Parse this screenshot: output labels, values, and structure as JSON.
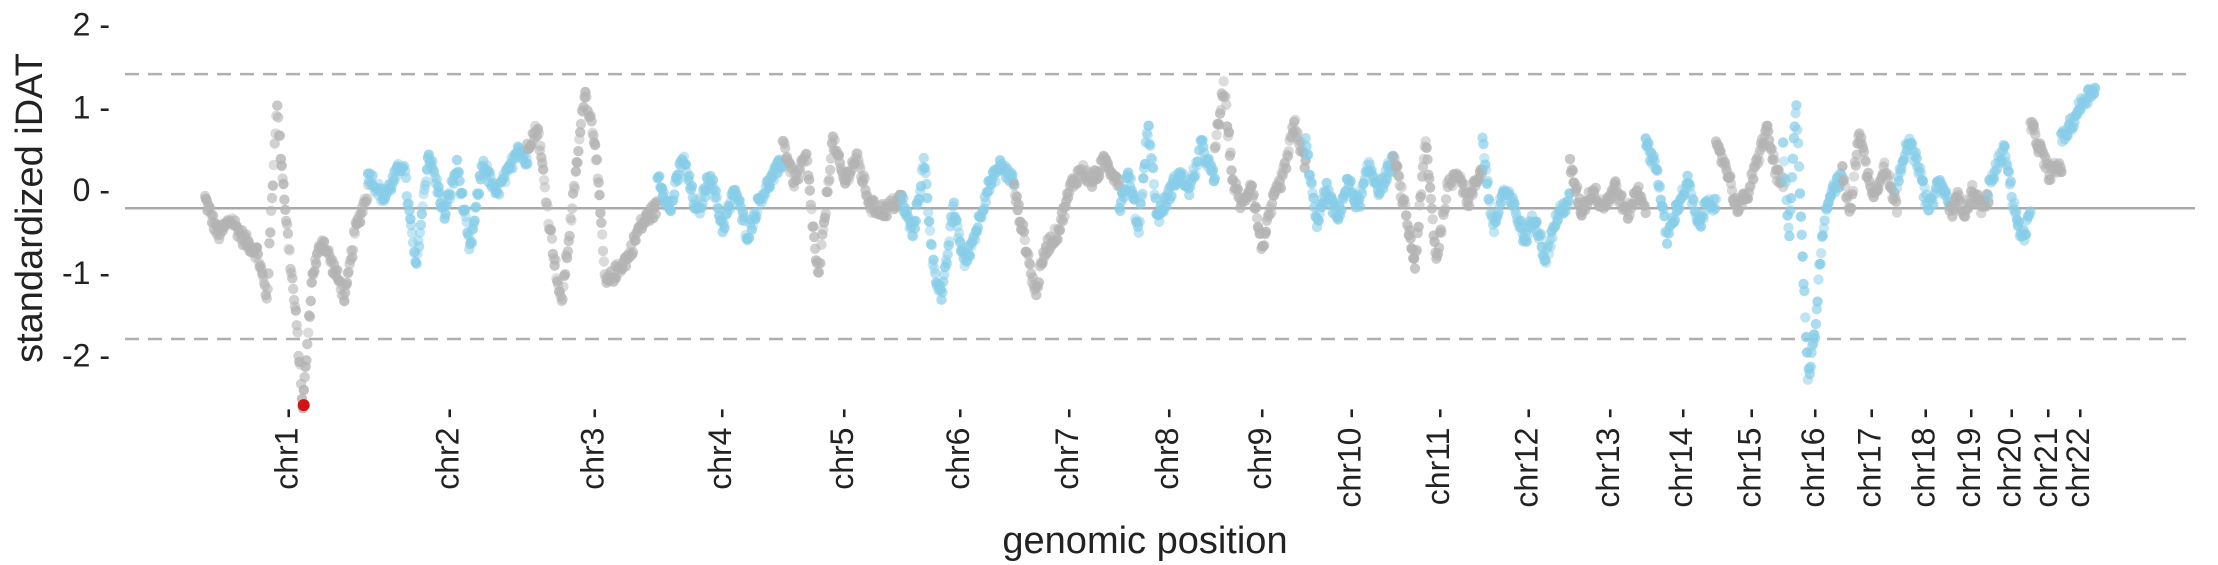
{
  "chart_data": {
    "type": "scatter",
    "title": "",
    "xlabel": "genomic position",
    "ylabel": "standardized iDAT",
    "ylim": [
      -2.7,
      2.0
    ],
    "y_ticks": [
      2,
      1,
      0,
      -1,
      -2
    ],
    "y_tick_labels": [
      "2 -",
      "1 -",
      "0 -",
      "-1 -",
      "-2 -"
    ],
    "baseline": -0.22,
    "thresholds": [
      1.4,
      -1.8
    ],
    "colors": {
      "gray": "#b3b3b3",
      "blue": "#87cde8",
      "highlight": "#d11414",
      "line": "#aaaaaa",
      "dashed": "#b0b0b0"
    },
    "grid": false,
    "legend": "none",
    "chromosomes": [
      {
        "name": "chr1",
        "label": "chr1 -",
        "start": 0,
        "end": 248,
        "color": "gray",
        "profile": [
          [
            0,
            -0.1
          ],
          [
            0.08,
            -0.55
          ],
          [
            0.16,
            -0.35
          ],
          [
            0.24,
            -0.6
          ],
          [
            0.32,
            -0.75
          ],
          [
            0.38,
            -1.3
          ],
          [
            0.44,
            1.05
          ],
          [
            0.5,
            -0.4
          ],
          [
            0.56,
            -1.6
          ],
          [
            0.6,
            -2.6
          ],
          [
            0.66,
            -1.0
          ],
          [
            0.72,
            -0.6
          ],
          [
            0.8,
            -1.0
          ],
          [
            0.86,
            -1.3
          ],
          [
            0.92,
            -0.5
          ],
          [
            1,
            0.0
          ]
        ]
      },
      {
        "name": "chr2",
        "label": "chr2 -",
        "start": 248,
        "end": 490,
        "color": "blue",
        "profile": [
          [
            0,
            0.2
          ],
          [
            0.1,
            -0.1
          ],
          [
            0.22,
            0.35
          ],
          [
            0.3,
            -0.95
          ],
          [
            0.38,
            0.45
          ],
          [
            0.48,
            -0.3
          ],
          [
            0.56,
            0.3
          ],
          [
            0.64,
            -0.75
          ],
          [
            0.72,
            0.35
          ],
          [
            0.8,
            -0.05
          ],
          [
            0.88,
            0.2
          ],
          [
            0.94,
            0.55
          ],
          [
            1,
            0.3
          ]
        ]
      },
      {
        "name": "chr3",
        "label": "chr3 -",
        "start": 490,
        "end": 688,
        "color": "gray",
        "profile": [
          [
            0,
            0.55
          ],
          [
            0.08,
            0.75
          ],
          [
            0.16,
            -0.3
          ],
          [
            0.26,
            -1.4
          ],
          [
            0.36,
            0.0
          ],
          [
            0.44,
            1.2
          ],
          [
            0.52,
            0.6
          ],
          [
            0.6,
            -1.15
          ],
          [
            0.7,
            -0.95
          ],
          [
            0.78,
            -0.8
          ],
          [
            0.86,
            -0.45
          ],
          [
            0.94,
            -0.3
          ],
          [
            1,
            -0.2
          ]
        ]
      },
      {
        "name": "chr4",
        "label": "chr4 -",
        "start": 688,
        "end": 878,
        "color": "blue",
        "profile": [
          [
            0,
            0.2
          ],
          [
            0.1,
            -0.25
          ],
          [
            0.2,
            0.4
          ],
          [
            0.32,
            -0.3
          ],
          [
            0.42,
            0.2
          ],
          [
            0.52,
            -0.45
          ],
          [
            0.62,
            0.0
          ],
          [
            0.72,
            -0.55
          ],
          [
            0.82,
            -0.1
          ],
          [
            0.92,
            0.15
          ],
          [
            1,
            0.35
          ]
        ]
      },
      {
        "name": "chr5",
        "label": "chr5 -",
        "start": 878,
        "end": 1059,
        "color": "gray",
        "profile": [
          [
            0,
            0.6
          ],
          [
            0.1,
            0.1
          ],
          [
            0.2,
            0.4
          ],
          [
            0.3,
            -1.1
          ],
          [
            0.42,
            0.6
          ],
          [
            0.52,
            0.1
          ],
          [
            0.62,
            0.4
          ],
          [
            0.74,
            -0.2
          ],
          [
            0.86,
            -0.25
          ],
          [
            1,
            -0.1
          ]
        ]
      },
      {
        "name": "chr6",
        "label": "chr6 -",
        "start": 1059,
        "end": 1230,
        "color": "blue",
        "profile": [
          [
            0,
            -0.1
          ],
          [
            0.1,
            -0.55
          ],
          [
            0.2,
            0.35
          ],
          [
            0.28,
            -0.9
          ],
          [
            0.36,
            -1.3
          ],
          [
            0.46,
            -0.2
          ],
          [
            0.56,
            -0.9
          ],
          [
            0.66,
            -0.5
          ],
          [
            0.76,
            0.0
          ],
          [
            0.88,
            0.3
          ],
          [
            1,
            0.1
          ]
        ]
      },
      {
        "name": "chr7",
        "label": "chr7 -",
        "start": 1230,
        "end": 1390,
        "color": "gray",
        "profile": [
          [
            0,
            0.0
          ],
          [
            0.1,
            -0.6
          ],
          [
            0.2,
            -1.25
          ],
          [
            0.3,
            -0.7
          ],
          [
            0.42,
            -0.5
          ],
          [
            0.54,
            0.05
          ],
          [
            0.64,
            0.25
          ],
          [
            0.74,
            0.1
          ],
          [
            0.86,
            0.35
          ],
          [
            1,
            0.1
          ]
        ]
      },
      {
        "name": "chr8",
        "label": "chr8 -",
        "start": 1390,
        "end": 1535,
        "color": "blue",
        "profile": [
          [
            0,
            -0.2
          ],
          [
            0.1,
            0.2
          ],
          [
            0.2,
            -0.5
          ],
          [
            0.3,
            0.8
          ],
          [
            0.4,
            -0.35
          ],
          [
            0.5,
            -0.1
          ],
          [
            0.62,
            0.2
          ],
          [
            0.74,
            0.0
          ],
          [
            0.86,
            0.55
          ],
          [
            1,
            0.1
          ]
        ]
      },
      {
        "name": "chr9",
        "label": "chr9 -",
        "start": 1535,
        "end": 1673,
        "color": "gray",
        "profile": [
          [
            0,
            0.5
          ],
          [
            0.1,
            1.25
          ],
          [
            0.2,
            0.1
          ],
          [
            0.3,
            -0.2
          ],
          [
            0.4,
            0.1
          ],
          [
            0.52,
            -0.7
          ],
          [
            0.64,
            -0.15
          ],
          [
            0.76,
            0.2
          ],
          [
            0.88,
            0.8
          ],
          [
            1,
            0.3
          ]
        ]
      },
      {
        "name": "chr10",
        "label": "chr10 -",
        "start": 1673,
        "end": 1807,
        "color": "blue",
        "profile": [
          [
            0,
            0.6
          ],
          [
            0.12,
            -0.4
          ],
          [
            0.24,
            0.0
          ],
          [
            0.36,
            -0.35
          ],
          [
            0.48,
            0.1
          ],
          [
            0.6,
            -0.2
          ],
          [
            0.72,
            0.3
          ],
          [
            0.84,
            0.0
          ],
          [
            0.94,
            0.25
          ],
          [
            1,
            0.35
          ]
        ]
      },
      {
        "name": "chr11",
        "label": "chr11 -",
        "start": 1807,
        "end": 1942,
        "color": "gray",
        "profile": [
          [
            0,
            0.4
          ],
          [
            0.12,
            -0.2
          ],
          [
            0.24,
            -0.9
          ],
          [
            0.36,
            0.6
          ],
          [
            0.48,
            -0.85
          ],
          [
            0.6,
            0.0
          ],
          [
            0.72,
            0.25
          ],
          [
            0.84,
            -0.15
          ],
          [
            1,
            0.3
          ]
        ]
      },
      {
        "name": "chr12",
        "label": "chr12 -",
        "start": 1942,
        "end": 2075,
        "color": "blue",
        "profile": [
          [
            0,
            0.6
          ],
          [
            0.12,
            -0.5
          ],
          [
            0.24,
            0.0
          ],
          [
            0.36,
            -0.2
          ],
          [
            0.48,
            -0.6
          ],
          [
            0.6,
            -0.3
          ],
          [
            0.72,
            -0.85
          ],
          [
            0.84,
            -0.35
          ],
          [
            1,
            -0.1
          ]
        ]
      },
      {
        "name": "chr13",
        "label": "chr13 -",
        "start": 2075,
        "end": 2190,
        "color": "gray",
        "profile": [
          [
            0,
            0.3
          ],
          [
            0.15,
            -0.25
          ],
          [
            0.3,
            0.0
          ],
          [
            0.45,
            -0.2
          ],
          [
            0.6,
            0.05
          ],
          [
            0.75,
            -0.3
          ],
          [
            0.9,
            0.0
          ],
          [
            1,
            -0.2
          ]
        ]
      },
      {
        "name": "chr14",
        "label": "chr14 -",
        "start": 2190,
        "end": 2297,
        "color": "blue",
        "profile": [
          [
            0,
            0.55
          ],
          [
            0.15,
            0.3
          ],
          [
            0.3,
            -0.6
          ],
          [
            0.45,
            -0.2
          ],
          [
            0.6,
            0.1
          ],
          [
            0.75,
            -0.45
          ],
          [
            0.9,
            -0.1
          ],
          [
            1,
            -0.2
          ]
        ]
      },
      {
        "name": "chr15",
        "label": "chr15 -",
        "start": 2297,
        "end": 2399,
        "color": "gray",
        "profile": [
          [
            0,
            0.5
          ],
          [
            0.15,
            0.3
          ],
          [
            0.3,
            -0.2
          ],
          [
            0.45,
            -0.1
          ],
          [
            0.6,
            0.3
          ],
          [
            0.75,
            0.75
          ],
          [
            0.9,
            0.2
          ],
          [
            1,
            0.05
          ]
        ]
      },
      {
        "name": "chr16",
        "label": "chr16 -",
        "start": 2399,
        "end": 2489,
        "color": "blue",
        "profile": [
          [
            0,
            0.5
          ],
          [
            0.1,
            -0.6
          ],
          [
            0.22,
            1.15
          ],
          [
            0.34,
            -1.0
          ],
          [
            0.42,
            -2.3
          ],
          [
            0.54,
            -1.7
          ],
          [
            0.66,
            -0.5
          ],
          [
            0.8,
            0.0
          ],
          [
            1,
            0.15
          ]
        ]
      },
      {
        "name": "chr17",
        "label": "chr17 -",
        "start": 2489,
        "end": 2572,
        "color": "gray",
        "profile": [
          [
            0,
            0.2
          ],
          [
            0.15,
            -0.3
          ],
          [
            0.3,
            0.75
          ],
          [
            0.45,
            0.2
          ],
          [
            0.6,
            -0.05
          ],
          [
            0.75,
            0.3
          ],
          [
            0.9,
            0.0
          ],
          [
            1,
            -0.2
          ]
        ]
      },
      {
        "name": "chr18",
        "label": "chr18 -",
        "start": 2572,
        "end": 2652,
        "color": "blue",
        "profile": [
          [
            0,
            0.1
          ],
          [
            0.2,
            0.6
          ],
          [
            0.4,
            0.3
          ],
          [
            0.6,
            -0.25
          ],
          [
            0.8,
            0.1
          ],
          [
            1,
            -0.15
          ]
        ]
      },
      {
        "name": "chr19",
        "label": "chr19 -",
        "start": 2652,
        "end": 2711,
        "color": "gray",
        "profile": [
          [
            0,
            -0.3
          ],
          [
            0.2,
            -0.1
          ],
          [
            0.4,
            -0.25
          ],
          [
            0.6,
            0.0
          ],
          [
            0.8,
            -0.2
          ],
          [
            1,
            -0.1
          ]
        ]
      },
      {
        "name": "chr20",
        "label": "chr20 -",
        "start": 2711,
        "end": 2775,
        "color": "blue",
        "profile": [
          [
            0,
            0.0
          ],
          [
            0.2,
            0.3
          ],
          [
            0.4,
            0.5
          ],
          [
            0.6,
            -0.2
          ],
          [
            0.8,
            -0.6
          ],
          [
            1,
            -0.3
          ]
        ]
      },
      {
        "name": "chr21",
        "label": "chr21 -",
        "start": 2775,
        "end": 2822,
        "color": "gray",
        "profile": [
          [
            0,
            0.8
          ],
          [
            0.3,
            0.5
          ],
          [
            0.6,
            0.2
          ],
          [
            1,
            0.3
          ]
        ]
      },
      {
        "name": "chr22",
        "label": "chr22 -",
        "start": 2822,
        "end": 2873,
        "color": "blue",
        "profile": [
          [
            0,
            0.6
          ],
          [
            0.3,
            0.8
          ],
          [
            0.6,
            1.05
          ],
          [
            1,
            1.25
          ]
        ]
      }
    ],
    "highlight_point": {
      "x": 150,
      "y": -2.6
    }
  }
}
